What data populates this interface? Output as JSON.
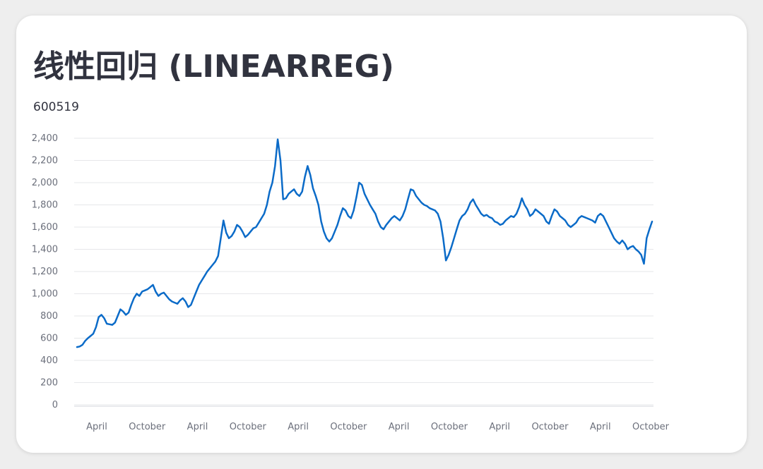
{
  "header": {
    "title": "线性回归 (LINEARREG)",
    "subtitle": "600519"
  },
  "colors": {
    "line": "#0b6bc8",
    "grid": "#e6e7ea",
    "text": "#31333f"
  },
  "chart_data": {
    "type": "line",
    "title": "",
    "xlabel": "",
    "ylabel": "",
    "ylim": [
      0,
      2400
    ],
    "y_ticks": [
      0,
      200,
      400,
      600,
      800,
      1000,
      1200,
      1400,
      1600,
      1800,
      2000,
      2200,
      2400
    ],
    "y_tick_labels": [
      "0",
      "200",
      "400",
      "600",
      "800",
      "1,000",
      "1,200",
      "1,400",
      "1,600",
      "1,800",
      "2,000",
      "2,200",
      "2,400"
    ],
    "x_tick_labels": [
      "April",
      "October",
      "April",
      "October",
      "April",
      "October",
      "April",
      "October",
      "April",
      "October",
      "April",
      "October"
    ],
    "grid": true,
    "series": [
      {
        "values": [
          520,
          525,
          540,
          575,
          600,
          620,
          640,
          700,
          790,
          810,
          780,
          730,
          725,
          720,
          740,
          800,
          860,
          840,
          810,
          830,
          900,
          960,
          1000,
          980,
          1020,
          1030,
          1040,
          1060,
          1080,
          1020,
          980,
          1000,
          1010,
          980,
          950,
          930,
          920,
          910,
          940,
          960,
          930,
          880,
          900,
          960,
          1020,
          1080,
          1120,
          1160,
          1200,
          1230,
          1260,
          1290,
          1340,
          1500,
          1660,
          1550,
          1500,
          1520,
          1560,
          1620,
          1600,
          1560,
          1510,
          1530,
          1560,
          1590,
          1600,
          1640,
          1680,
          1720,
          1800,
          1920,
          2000,
          2150,
          2390,
          2200,
          1850,
          1860,
          1900,
          1920,
          1940,
          1900,
          1880,
          1920,
          2050,
          2150,
          2070,
          1950,
          1880,
          1800,
          1650,
          1560,
          1500,
          1470,
          1500,
          1560,
          1620,
          1700,
          1770,
          1750,
          1700,
          1680,
          1750,
          1870,
          2000,
          1980,
          1900,
          1850,
          1800,
          1760,
          1720,
          1650,
          1600,
          1580,
          1620,
          1650,
          1680,
          1700,
          1680,
          1660,
          1700,
          1760,
          1850,
          1940,
          1930,
          1880,
          1850,
          1820,
          1800,
          1790,
          1770,
          1760,
          1750,
          1720,
          1650,
          1500,
          1300,
          1350,
          1420,
          1500,
          1580,
          1660,
          1700,
          1720,
          1760,
          1820,
          1850,
          1800,
          1760,
          1720,
          1700,
          1710,
          1690,
          1680,
          1650,
          1640,
          1620,
          1630,
          1660,
          1680,
          1700,
          1690,
          1720,
          1780,
          1860,
          1800,
          1760,
          1700,
          1720,
          1760,
          1740,
          1720,
          1700,
          1650,
          1630,
          1700,
          1760,
          1740,
          1700,
          1680,
          1660,
          1620,
          1600,
          1620,
          1640,
          1680,
          1700,
          1690,
          1680,
          1670,
          1660,
          1640,
          1700,
          1720,
          1700,
          1650,
          1600,
          1550,
          1500,
          1470,
          1450,
          1480,
          1450,
          1400,
          1420,
          1430,
          1400,
          1380,
          1350,
          1270,
          1500,
          1580,
          1650
        ]
      }
    ]
  }
}
